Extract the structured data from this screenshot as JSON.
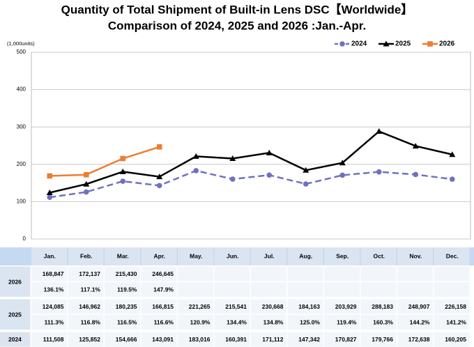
{
  "chart_data": {
    "type": "line",
    "title": "Quantity of Total Shipment of Built-in Lens DSC【Worldwide】",
    "subtitle": "Comparison of 2024, 2025 and 2026 :Jan.-Apr.",
    "y_label": "(1,000units)",
    "categories": [
      "Jan.",
      "Feb.",
      "Mar.",
      "Apr.",
      "May.",
      "Jun.",
      "Jul.",
      "Aug.",
      "Sep.",
      "Oct.",
      "Nov.",
      "Dec."
    ],
    "series": [
      {
        "name": "2024",
        "color": "#7070c0",
        "dashed": true,
        "marker": "circle",
        "values": [
          111.508,
          125.852,
          154.666,
          143.091,
          183.016,
          160.391,
          171.112,
          147.342,
          170.827,
          179.766,
          172.638,
          160.205
        ]
      },
      {
        "name": "2025",
        "color": "#000000",
        "dashed": false,
        "marker": "triangle",
        "values": [
          124.085,
          146.962,
          180.235,
          166.815,
          221.265,
          215.541,
          230.668,
          184.163,
          203.929,
          288.183,
          248.907,
          226.158
        ]
      },
      {
        "name": "2026",
        "color": "#ed7d31",
        "dashed": false,
        "marker": "square",
        "values": [
          168.847,
          172.137,
          215.43,
          246.645,
          null,
          null,
          null,
          null,
          null,
          null,
          null,
          null
        ]
      }
    ],
    "ylim": [
      0,
      500
    ],
    "yticks": [
      0,
      100,
      200,
      300,
      400,
      500
    ],
    "grid": true,
    "legend": "top-right"
  },
  "table": {
    "rows": [
      {
        "label": "2026",
        "values": [
          "168,847",
          "172,137",
          "215,430",
          "246,645",
          null,
          null,
          null,
          null,
          null,
          null,
          null,
          null
        ],
        "pct": [
          "136.1%",
          "117.1%",
          "119.5%",
          "147.9%",
          null,
          null,
          null,
          null,
          null,
          null,
          null,
          null
        ]
      },
      {
        "label": "2025",
        "values": [
          "124,085",
          "146,962",
          "180,235",
          "166,815",
          "221,265",
          "215,541",
          "230,668",
          "184,163",
          "203,929",
          "288,183",
          "248,907",
          "226,158"
        ],
        "pct": [
          "111.3%",
          "116.8%",
          "116.5%",
          "116.6%",
          "120.9%",
          "134.4%",
          "134.8%",
          "125.0%",
          "119.4%",
          "160.3%",
          "144.2%",
          "141.2%"
        ]
      },
      {
        "label": "2024",
        "values": [
          "111,508",
          "125,852",
          "154,666",
          "143,091",
          "183,016",
          "160,391",
          "171,112",
          "147,342",
          "170,827",
          "179,766",
          "172,638",
          "160,205"
        ]
      }
    ]
  }
}
